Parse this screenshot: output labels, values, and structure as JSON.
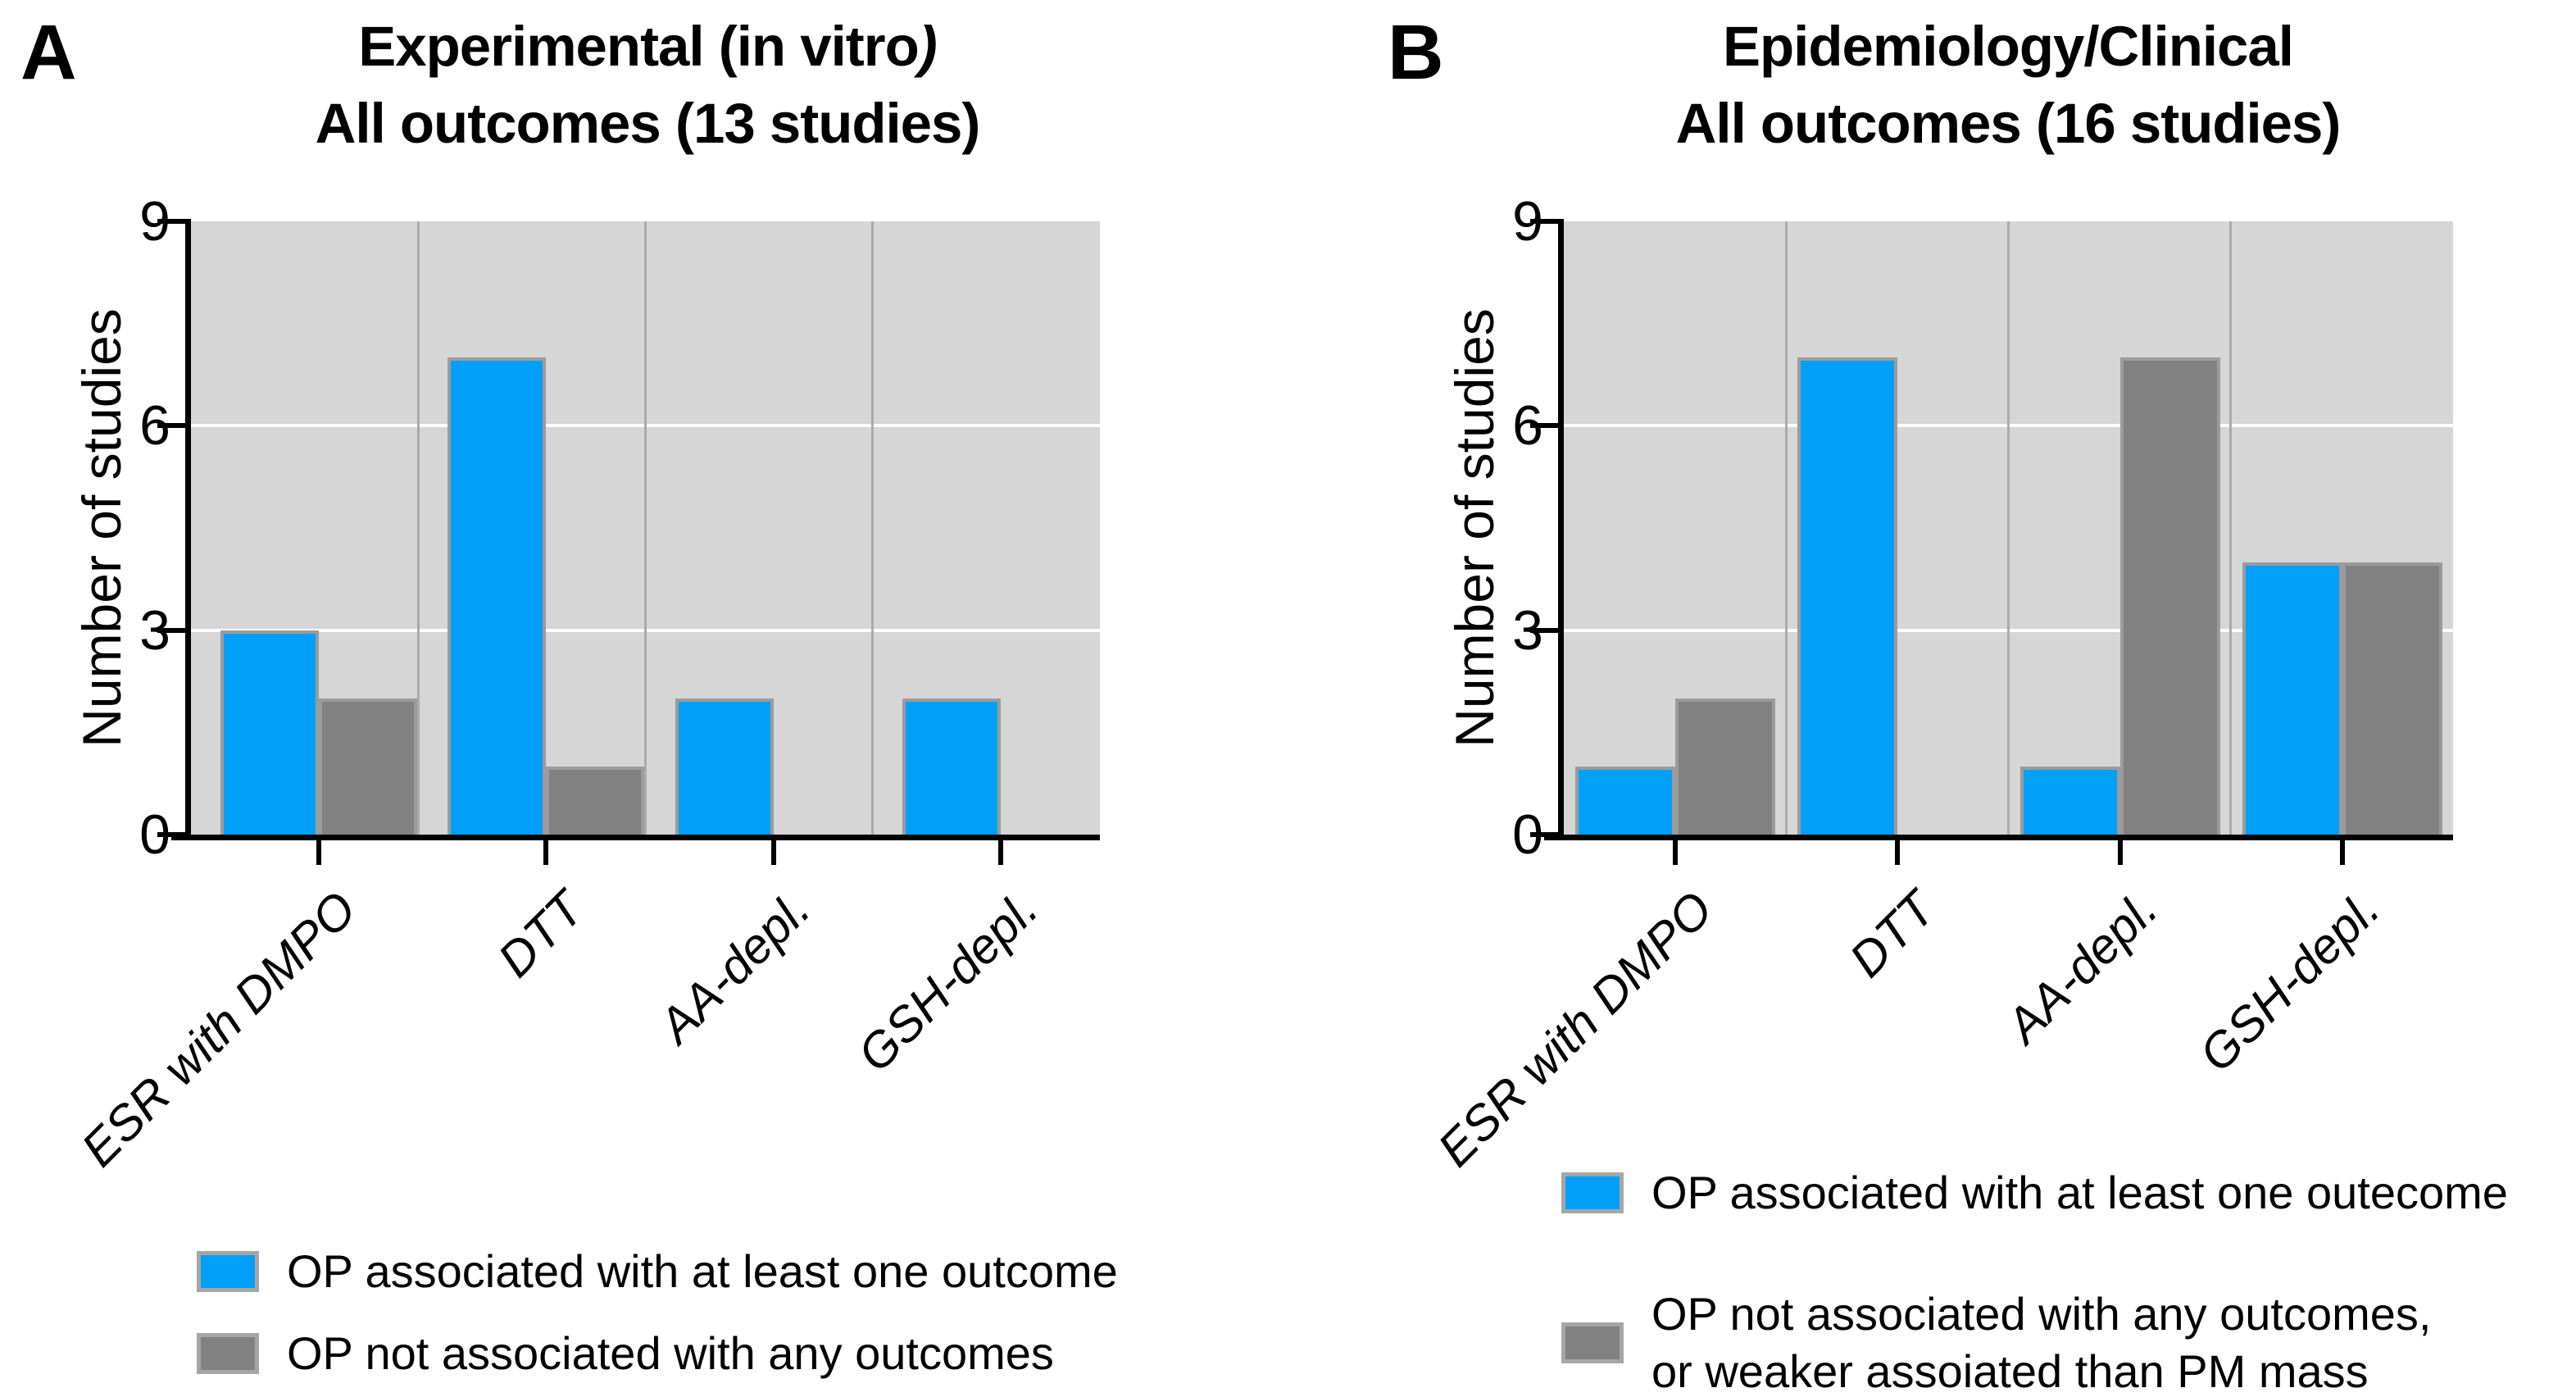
{
  "figure": {
    "colors": {
      "blue": "#00A0F8",
      "gray": "#818181",
      "bar_border": "#9B9B9B",
      "plot_bg": "#D6D6D6",
      "gridline": "#FFFFFF",
      "separator": "#ABABAB",
      "axis": "#000000"
    },
    "panels": [
      {
        "letter": "A",
        "title_line1_main": "Experimental (in vitro",
        "title_line1_italic": ")",
        "title_line2": "All outcomes (13 studies)",
        "y_axis_label": "Number of studies",
        "legend": [
          {
            "color_key": "blue",
            "lines": [
              "OP associated with at least one outcome"
            ]
          },
          {
            "color_key": "gray",
            "lines": [
              "OP not associated with any outcomes"
            ]
          }
        ]
      },
      {
        "letter": "B",
        "title_line1_main": "Epidemiology/Clinical",
        "title_line1_italic": "",
        "title_line2": "All outcomes (16 studies)",
        "y_axis_label": "Number of studies",
        "legend": [
          {
            "color_key": "blue",
            "lines": [
              "OP associated with at least one outecome"
            ]
          },
          {
            "color_key": "gray",
            "lines": [
              "OP not associated with any outcomes,",
              "or weaker assoiated than PM mass"
            ]
          }
        ]
      }
    ]
  },
  "chart_data": [
    {
      "type": "bar",
      "title": "Experimental (in vitro) - All outcomes (13 studies)",
      "categories": [
        "ESR with DMPO",
        "DTT",
        "AA-depl.",
        "GSH-depl."
      ],
      "series": [
        {
          "name": "OP associated with at least one outcome",
          "color_key": "blue",
          "values": [
            3,
            7,
            2,
            2
          ]
        },
        {
          "name": "OP not associated with any outcomes",
          "color_key": "gray",
          "values": [
            2,
            1,
            0,
            0
          ]
        }
      ],
      "xlabel": "",
      "ylabel": "Number of studies",
      "ylim": [
        0,
        9
      ],
      "yticks": [
        0,
        3,
        6,
        9
      ],
      "gridlines": [
        3,
        6
      ],
      "grid": "horizontal-white-plus-category-separators",
      "legend_position": "bottom"
    },
    {
      "type": "bar",
      "title": "Epidemiology/Clinical - All outcomes (16 studies)",
      "categories": [
        "ESR with DMPO",
        "DTT",
        "AA-depl.",
        "GSH-depl."
      ],
      "series": [
        {
          "name": "OP associated with at least one outecome",
          "color_key": "blue",
          "values": [
            1,
            7,
            1,
            4
          ]
        },
        {
          "name": "OP not associated with any outcomes, or weaker assoiated than PM mass",
          "color_key": "gray",
          "values": [
            2,
            0,
            7,
            4
          ]
        }
      ],
      "xlabel": "",
      "ylabel": "Number of studies",
      "ylim": [
        0,
        9
      ],
      "yticks": [
        0,
        3,
        6,
        9
      ],
      "gridlines": [
        3,
        6
      ],
      "grid": "horizontal-white-plus-category-separators",
      "legend_position": "bottom"
    }
  ]
}
